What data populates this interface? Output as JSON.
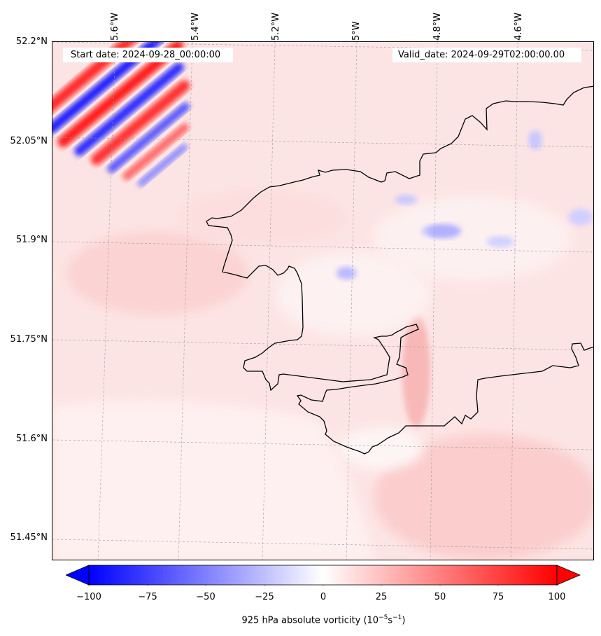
{
  "map": {
    "start_label": "Start date: 2024-09-28_00:00:00",
    "valid_label": "Valid_date: 2024-09-29T02:00:00.00",
    "longitude_labels": [
      "5.6°W",
      "5.4°W",
      "5.2°W",
      "5°W",
      "4.8°W",
      "4.6°W"
    ],
    "latitude_labels": [
      "52.2°N",
      "52.05°N",
      "51.9°N",
      "51.75°N",
      "51.6°N",
      "51.45°N"
    ],
    "background_color": "#fde6e6",
    "coastline_color": "#000000"
  },
  "colorbar": {
    "ticks": [
      "−100",
      "−75",
      "−50",
      "−25",
      "0",
      "25",
      "50",
      "75",
      "100"
    ],
    "label": "925 hPa absolute vorticity (10",
    "label_exp": "−5",
    "label_unit": "s",
    "label_exp2": "−1",
    "label_end": ")",
    "min": -100,
    "max": 100,
    "colormap": "bwr"
  }
}
